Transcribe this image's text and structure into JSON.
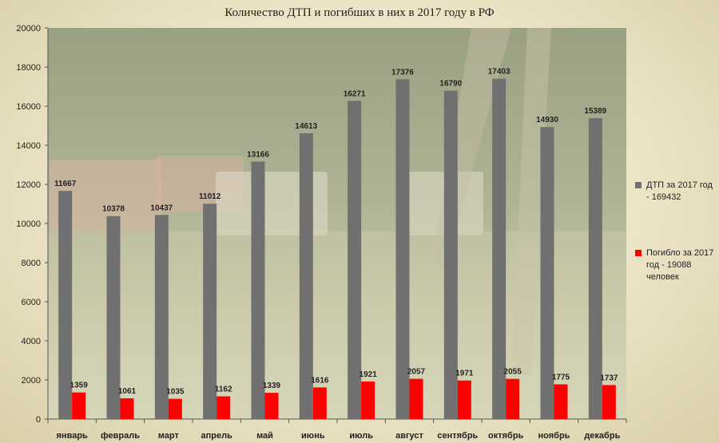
{
  "chart_data": {
    "type": "bar",
    "title": "Количество ДТП и погибших в них в 2017 году в РФ",
    "categories": [
      "январь",
      "февраль",
      "март",
      "апрель",
      "май",
      "июнь",
      "июль",
      "август",
      "сентябрь",
      "октябрь",
      "ноябрь",
      "декабрь"
    ],
    "series": [
      {
        "name": "ДТП за 2017 год - 169432",
        "color": "#707070",
        "values": [
          11667,
          10378,
          10437,
          11012,
          13166,
          14613,
          16271,
          17376,
          16790,
          17403,
          14930,
          15389
        ]
      },
      {
        "name": "Погибло за 2017 год - 19088 человек",
        "color": "#ff0000",
        "values": [
          1359,
          1061,
          1035,
          1162,
          1339,
          1616,
          1921,
          2057,
          1971,
          2055,
          1775,
          1737
        ]
      }
    ],
    "ylim": [
      0,
      20000
    ],
    "yticks": [
      0,
      2000,
      4000,
      6000,
      8000,
      10000,
      12000,
      14000,
      16000,
      18000,
      20000
    ],
    "xlabel": "",
    "ylabel": "",
    "grid": false,
    "legend": "right",
    "data_labels": true
  }
}
